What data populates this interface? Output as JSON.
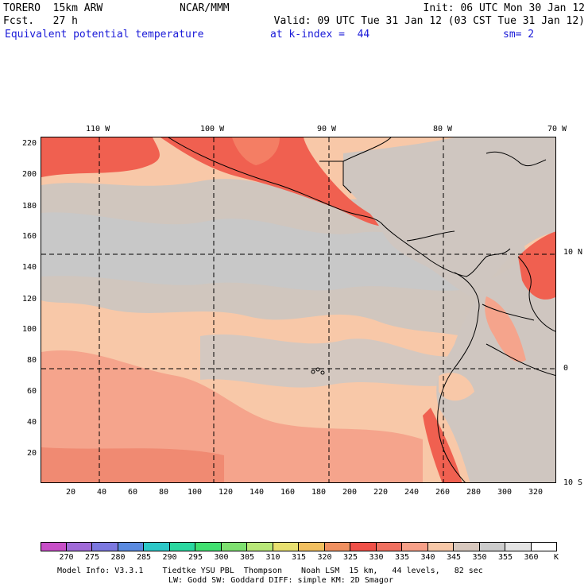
{
  "header": {
    "model": "TORERO  15km ARW",
    "center": "NCAR/MMM",
    "init": "Init: 06 UTC Mon 30 Jan 12",
    "fcst": "Fcst.   27 h",
    "valid": "Valid: 09 UTC Tue 31 Jan 12 (03 CST Tue 31 Jan 12)",
    "field": "Equivalent potential temperature",
    "level": "at k-index =  44",
    "smooth": "sm= 2"
  },
  "map": {
    "top_longitudes": [
      "110 W",
      "100 W",
      "90 W",
      "80 W",
      "70 W"
    ],
    "right_latitudes": [
      "10 N",
      "0",
      "10 S"
    ],
    "y_ticks": [
      "220",
      "200",
      "180",
      "160",
      "140",
      "120",
      "100",
      "80",
      "60",
      "40",
      "20"
    ],
    "x_ticks": [
      "20",
      "40",
      "60",
      "80",
      "100",
      "120",
      "140",
      "160",
      "180",
      "200",
      "220",
      "240",
      "260",
      "280",
      "300",
      "320"
    ]
  },
  "colorbar": {
    "labels": [
      "270",
      "275",
      "280",
      "285",
      "290",
      "295",
      "300",
      "305",
      "310",
      "315",
      "320",
      "325",
      "330",
      "335",
      "340",
      "345",
      "350",
      "355",
      "360"
    ],
    "unit": "K",
    "colors": [
      "#c84fc8",
      "#a06ad8",
      "#7c78e0",
      "#5a8ae0",
      "#2cc8c8",
      "#2ad8a0",
      "#40e070",
      "#7ee070",
      "#b8e878",
      "#e8e070",
      "#f2c060",
      "#f09060",
      "#f05048",
      "#f07060",
      "#f8a088",
      "#f8c8a8",
      "#d8c8be",
      "#cccccc",
      "#e4e4e4",
      "#ffffff"
    ]
  },
  "footer": {
    "line1": "Model Info: V3.3.1    Tiedtke YSU PBL  Thompson    Noah LSM  15 km,   44 levels,   82 sec",
    "line2": "LW: Godd SW: Goddard DIFF: simple KM: 2D Smagor"
  }
}
